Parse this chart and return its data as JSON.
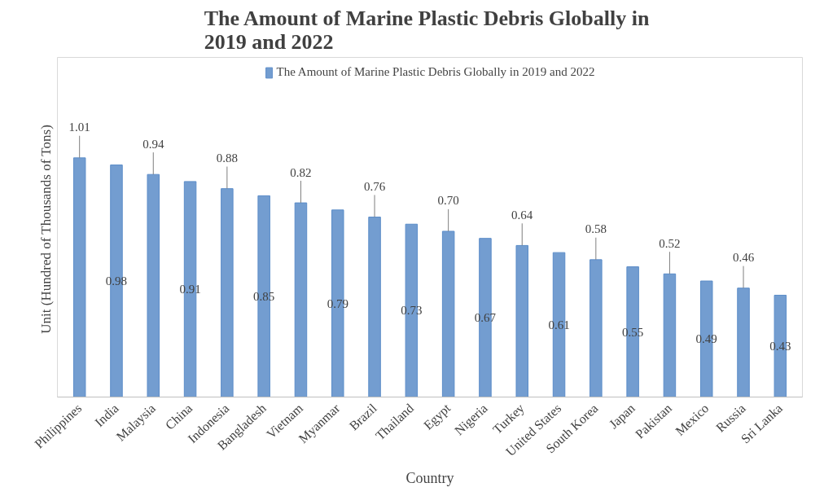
{
  "chart_data": {
    "type": "bar",
    "title": "The Amount of  Marine Plastic Debris Globally in 2019 and 2022",
    "xlabel": "Country",
    "ylabel": "Unit (Hundred of Thousands of  Tons)",
    "categories": [
      "Philippines",
      "India",
      "Malaysia",
      "China",
      "Indonesia",
      "Bangladesh",
      "Vietnam",
      "Myanmar",
      "Brazil",
      "Thailand",
      "Egypt",
      "Nigeria",
      "Turkey",
      "United States",
      "South Korea",
      "Japan",
      "Pakistan",
      "Mexico",
      "Russia",
      "Sri Lanka"
    ],
    "series": [
      {
        "name": "The Amount of Marine Plastic Debris Globally in 2019 and 2022",
        "color": "#5b8cc8",
        "values": [
          1.01,
          0.98,
          0.94,
          0.91,
          0.88,
          0.85,
          0.82,
          0.79,
          0.76,
          0.73,
          0.7,
          0.67,
          0.64,
          0.61,
          0.58,
          0.55,
          0.52,
          0.49,
          0.46,
          0.43
        ],
        "value_labels": [
          "1.01",
          "0.98",
          "0.94",
          "0.91",
          "0.88",
          "0.85",
          "0.82",
          "0.79",
          "0.76",
          "0.73",
          "0.70",
          "0.67",
          "0.64",
          "0.61",
          "0.58",
          "0.55",
          "0.52",
          "0.49",
          "0.46",
          "0.43"
        ]
      }
    ],
    "legend": "top"
  }
}
